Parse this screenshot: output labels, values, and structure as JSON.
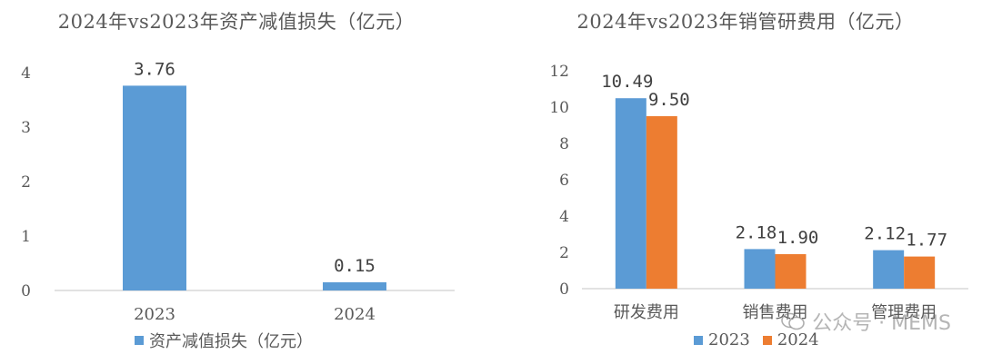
{
  "colors": {
    "series2023": "#5b9bd5",
    "series2024": "#ed7d31",
    "axis": "#d9d9d9",
    "text": "#595959"
  },
  "watermark": {
    "text": "公众号 · MEMS",
    "icon": "wechat-icon"
  },
  "chart_data": [
    {
      "type": "bar",
      "title": "2024年vs2023年资产减值损失（亿元）",
      "categories": [
        "2023",
        "2024"
      ],
      "series": [
        {
          "name": "资产减值损失（亿元）",
          "values": [
            3.76,
            0.15
          ],
          "labels": [
            "3.76",
            "0.15"
          ]
        }
      ],
      "yticks": [
        "0",
        "1",
        "2",
        "3",
        "4"
      ],
      "ylim": [
        0,
        4.3
      ],
      "grid": false,
      "legend": "bottom"
    },
    {
      "type": "bar",
      "title": "2024年vs2023年销管研费用（亿元）",
      "categories": [
        "研发费用",
        "销售费用",
        "管理费用"
      ],
      "series": [
        {
          "name": "2023",
          "values": [
            10.49,
            2.18,
            2.12
          ],
          "labels": [
            "10.49",
            "2.18",
            "2.12"
          ]
        },
        {
          "name": "2024",
          "values": [
            9.5,
            1.9,
            1.77
          ],
          "labels": [
            "9.50",
            "1.90",
            "1.77"
          ]
        }
      ],
      "yticks": [
        "0",
        "2",
        "4",
        "6",
        "8",
        "10",
        "12"
      ],
      "ylim": [
        0,
        12
      ],
      "grid": false,
      "legend": "bottom"
    }
  ]
}
